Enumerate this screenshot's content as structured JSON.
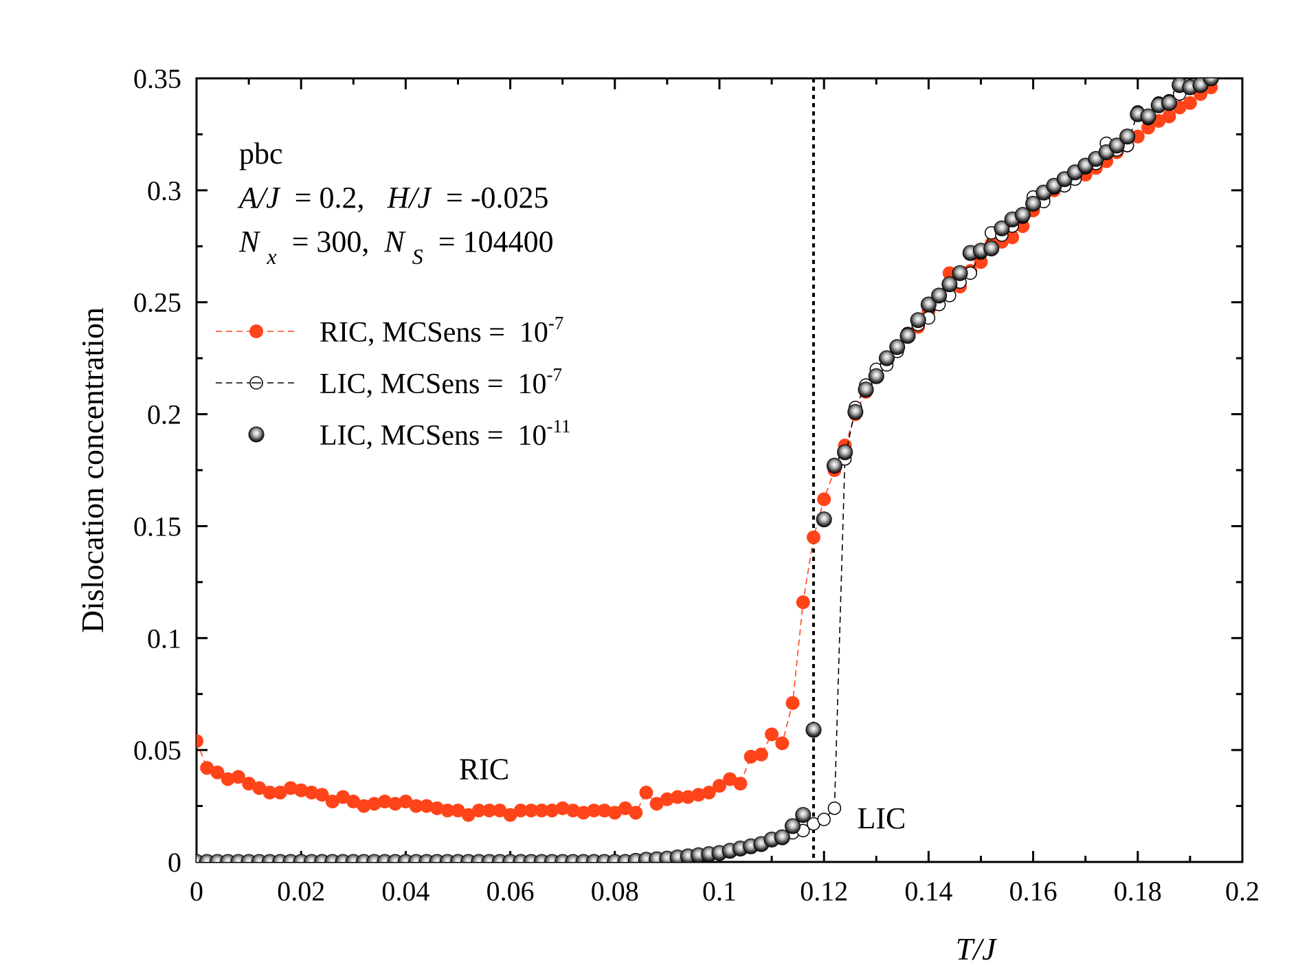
{
  "chart_data": {
    "type": "scatter",
    "xlabel": "T/J",
    "ylabel": "Dislocation concentration",
    "xlim": [
      0,
      0.2
    ],
    "ylim": [
      0,
      0.35
    ],
    "x_ticks": [
      0,
      0.02,
      0.04,
      0.06,
      0.08,
      0.1,
      0.12,
      0.14,
      0.16,
      0.18,
      0.2
    ],
    "x_tick_labels": [
      "0",
      "0.02",
      "0.04",
      "0.06",
      "0.08",
      "0.1",
      "0.12",
      "0.14",
      "0.16",
      "0.18",
      "0.2"
    ],
    "y_ticks": [
      0,
      0.05,
      0.1,
      0.15,
      0.2,
      0.25,
      0.3,
      0.35
    ],
    "y_tick_labels": [
      "0",
      "0.05",
      "0.1",
      "0.15",
      "0.2",
      "0.25",
      "0.3",
      "0.35"
    ],
    "grid": false,
    "legend_position": "left",
    "vertical_line": {
      "x": 0.118,
      "style": "dotted"
    },
    "info_text": {
      "line1": "pbc",
      "line2_a": "A/J",
      "line2_b": " = 0.2,  ",
      "line2_c": "H/J",
      "line2_d": " = -0.025",
      "line3_n1": "N",
      "line3_sub1": "x",
      "line3_mid": " = 300, ",
      "line3_n2": "N",
      "line3_sub2": "S",
      "line3_end": " = 104400"
    },
    "annotations": [
      {
        "text": "RIC",
        "x": 0.055,
        "y": 0.037
      },
      {
        "text": "LIC",
        "x": 0.131,
        "y": 0.015
      }
    ],
    "series": [
      {
        "name": "RIC, MCSens =  10",
        "exponent": "-7",
        "color": "#ff4419",
        "marker": "filled-circle",
        "line": "dashed",
        "x": [
          0,
          0.002,
          0.004,
          0.006,
          0.008,
          0.01,
          0.012,
          0.014,
          0.016,
          0.018,
          0.02,
          0.022,
          0.024,
          0.026,
          0.028,
          0.03,
          0.032,
          0.034,
          0.036,
          0.038,
          0.04,
          0.042,
          0.044,
          0.046,
          0.048,
          0.05,
          0.052,
          0.054,
          0.056,
          0.058,
          0.06,
          0.062,
          0.064,
          0.066,
          0.068,
          0.07,
          0.072,
          0.074,
          0.076,
          0.078,
          0.08,
          0.082,
          0.084,
          0.086,
          0.088,
          0.09,
          0.092,
          0.094,
          0.096,
          0.098,
          0.1,
          0.102,
          0.104,
          0.106,
          0.108,
          0.11,
          0.112,
          0.114,
          0.116,
          0.118,
          0.12,
          0.122,
          0.124,
          0.126,
          0.128,
          0.13,
          0.132,
          0.134,
          0.136,
          0.138,
          0.14,
          0.142,
          0.144,
          0.146,
          0.148,
          0.15,
          0.152,
          0.154,
          0.156,
          0.158,
          0.16,
          0.162,
          0.164,
          0.166,
          0.168,
          0.17,
          0.172,
          0.174,
          0.176,
          0.178,
          0.18,
          0.182,
          0.184,
          0.186,
          0.188,
          0.19,
          0.192,
          0.194
        ],
        "y": [
          0.054,
          0.042,
          0.04,
          0.037,
          0.038,
          0.035,
          0.033,
          0.031,
          0.031,
          0.033,
          0.032,
          0.031,
          0.03,
          0.027,
          0.029,
          0.027,
          0.025,
          0.026,
          0.027,
          0.026,
          0.027,
          0.025,
          0.025,
          0.024,
          0.023,
          0.023,
          0.021,
          0.023,
          0.023,
          0.023,
          0.021,
          0.023,
          0.023,
          0.023,
          0.023,
          0.024,
          0.023,
          0.022,
          0.023,
          0.023,
          0.022,
          0.024,
          0.022,
          0.031,
          0.026,
          0.028,
          0.029,
          0.029,
          0.03,
          0.031,
          0.034,
          0.037,
          0.035,
          0.047,
          0.048,
          0.057,
          0.053,
          0.071,
          0.116,
          0.145,
          0.162,
          0.175,
          0.186,
          0.2,
          0.21,
          0.217,
          0.224,
          0.229,
          0.236,
          0.239,
          0.246,
          0.252,
          0.263,
          0.257,
          0.264,
          0.268,
          0.276,
          0.277,
          0.279,
          0.284,
          0.291,
          0.297,
          0.3,
          0.304,
          0.307,
          0.307,
          0.31,
          0.313,
          0.317,
          0.32,
          0.324,
          0.328,
          0.331,
          0.333,
          0.337,
          0.339,
          0.343,
          0.346
        ]
      },
      {
        "name": "LIC, MCSens =  10",
        "exponent": "-7",
        "color": "#000000",
        "marker": "open-circle",
        "line": "dashed",
        "x": [
          0,
          0.002,
          0.004,
          0.006,
          0.008,
          0.01,
          0.012,
          0.014,
          0.016,
          0.018,
          0.02,
          0.022,
          0.024,
          0.026,
          0.028,
          0.03,
          0.032,
          0.034,
          0.036,
          0.038,
          0.04,
          0.042,
          0.044,
          0.046,
          0.048,
          0.05,
          0.052,
          0.054,
          0.056,
          0.058,
          0.06,
          0.062,
          0.064,
          0.066,
          0.068,
          0.07,
          0.072,
          0.074,
          0.076,
          0.078,
          0.08,
          0.082,
          0.084,
          0.086,
          0.088,
          0.09,
          0.092,
          0.094,
          0.096,
          0.098,
          0.1,
          0.102,
          0.104,
          0.106,
          0.108,
          0.11,
          0.112,
          0.114,
          0.116,
          0.118,
          0.12,
          0.122,
          0.124,
          0.126,
          0.128,
          0.13,
          0.132,
          0.134,
          0.136,
          0.138,
          0.14,
          0.142,
          0.144,
          0.146,
          0.148,
          0.15,
          0.152,
          0.154,
          0.156,
          0.158,
          0.16,
          0.162,
          0.164,
          0.166,
          0.168,
          0.17,
          0.172,
          0.174,
          0.176,
          0.178,
          0.18,
          0.182,
          0.184,
          0.186,
          0.188,
          0.19,
          0.192,
          0.194
        ],
        "y": [
          0,
          0,
          0,
          0,
          0,
          0,
          0,
          0,
          0,
          0,
          0,
          0,
          0,
          0,
          0,
          0,
          0,
          0,
          0,
          0,
          0,
          0,
          0,
          0,
          0,
          0,
          0,
          0,
          0,
          0,
          0,
          0,
          0,
          0,
          0,
          0,
          0,
          0,
          0,
          0,
          0,
          0,
          0.0005,
          0.001,
          0.0012,
          0.0015,
          0.002,
          0.0025,
          0.003,
          0.0035,
          0.004,
          0.005,
          0.006,
          0.007,
          0.008,
          0.01,
          0.011,
          0.013,
          0.014,
          0.017,
          0.019,
          0.024,
          0.18,
          0.203,
          0.213,
          0.22,
          0.222,
          0.228,
          0.236,
          0.24,
          0.243,
          0.249,
          0.253,
          0.259,
          0.263,
          0.272,
          0.281,
          0.28,
          0.284,
          0.288,
          0.297,
          0.295,
          0.301,
          0.302,
          0.305,
          0.31,
          0.312,
          0.321,
          0.318,
          0.32,
          0.335,
          0.332,
          0.339,
          0.34,
          0.343,
          0.346,
          0.347,
          0.35
        ]
      },
      {
        "name": "LIC, MCSens =  10",
        "exponent": "-11",
        "color": "#1a1a1a",
        "marker": "shaded-sphere",
        "line": "none",
        "x": [
          0,
          0.002,
          0.004,
          0.006,
          0.008,
          0.01,
          0.012,
          0.014,
          0.016,
          0.018,
          0.02,
          0.022,
          0.024,
          0.026,
          0.028,
          0.03,
          0.032,
          0.034,
          0.036,
          0.038,
          0.04,
          0.042,
          0.044,
          0.046,
          0.048,
          0.05,
          0.052,
          0.054,
          0.056,
          0.058,
          0.06,
          0.062,
          0.064,
          0.066,
          0.068,
          0.07,
          0.072,
          0.074,
          0.076,
          0.078,
          0.08,
          0.082,
          0.084,
          0.086,
          0.088,
          0.09,
          0.092,
          0.094,
          0.096,
          0.098,
          0.1,
          0.102,
          0.104,
          0.106,
          0.108,
          0.11,
          0.112,
          0.114,
          0.116,
          0.118,
          0.12,
          0.122,
          0.124,
          0.126,
          0.128,
          0.13,
          0.132,
          0.134,
          0.136,
          0.138,
          0.14,
          0.142,
          0.144,
          0.146,
          0.148,
          0.15,
          0.152,
          0.154,
          0.156,
          0.158,
          0.16,
          0.162,
          0.164,
          0.166,
          0.168,
          0.17,
          0.172,
          0.174,
          0.176,
          0.178,
          0.18,
          0.182,
          0.184,
          0.186,
          0.188,
          0.19,
          0.192,
          0.194
        ],
        "y": [
          0,
          0,
          0,
          0,
          0,
          0,
          0,
          0,
          0,
          0,
          0,
          0,
          0,
          0,
          0,
          0,
          0,
          0,
          0,
          0,
          0,
          0,
          0,
          0,
          0,
          0,
          0,
          0,
          0,
          0,
          0,
          0,
          0,
          0,
          0,
          0,
          0,
          0,
          0,
          0,
          0,
          0,
          0.0005,
          0.001,
          0.0012,
          0.0015,
          0.002,
          0.0025,
          0.003,
          0.0035,
          0.004,
          0.005,
          0.006,
          0.007,
          0.008,
          0.01,
          0.011,
          0.016,
          0.021,
          0.059,
          0.153,
          0.177,
          0.183,
          0.201,
          0.211,
          0.217,
          0.225,
          0.23,
          0.235,
          0.242,
          0.249,
          0.253,
          0.258,
          0.263,
          0.272,
          0.273,
          0.274,
          0.283,
          0.287,
          0.289,
          0.294,
          0.299,
          0.302,
          0.305,
          0.308,
          0.311,
          0.314,
          0.317,
          0.32,
          0.324,
          0.334,
          0.333,
          0.338,
          0.339,
          0.347,
          0.346,
          0.347,
          0.35
        ]
      }
    ]
  }
}
